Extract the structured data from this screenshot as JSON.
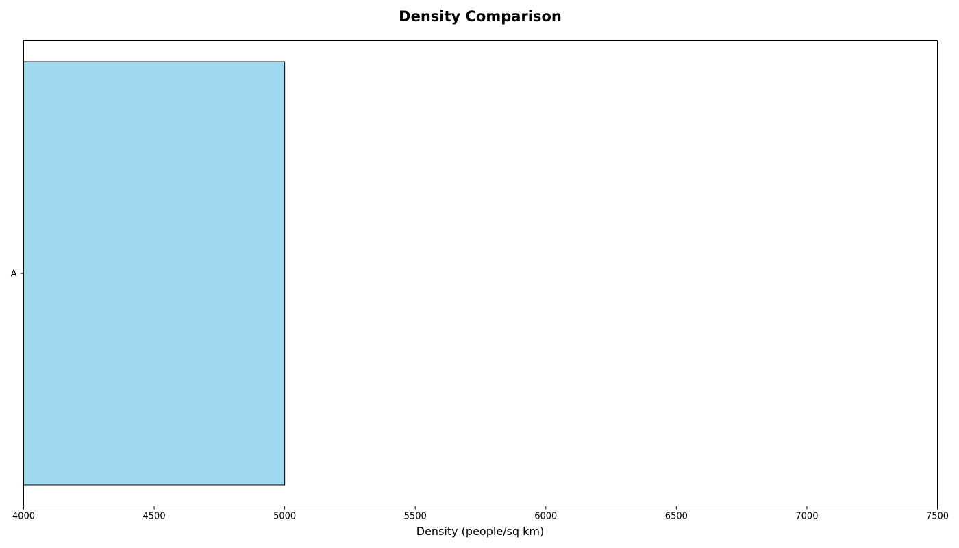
{
  "chart_data": {
    "type": "bar",
    "orientation": "horizontal",
    "title": "Density Comparison",
    "xlabel": "Density (people/sq km)",
    "ylabel": "",
    "categories": [
      "A"
    ],
    "values": [
      5000
    ],
    "xlim": [
      4000,
      7500
    ],
    "xticks": [
      4000,
      4500,
      5000,
      5500,
      6000,
      6500,
      7000,
      7500
    ],
    "grid": false,
    "bar_color": "#87ceeb",
    "bar_opacity": 0.8,
    "bar_edge_color": "#000000"
  }
}
